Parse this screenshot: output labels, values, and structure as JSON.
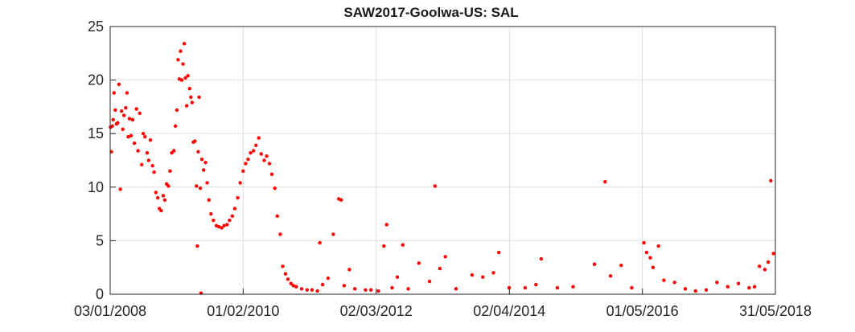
{
  "chart_data": {
    "type": "scatter",
    "title": "SAW2017-Goolwa-US: SAL",
    "xlabel": "",
    "ylabel": "",
    "x_ticks": [
      "03/01/2008",
      "01/02/2010",
      "02/03/2012",
      "02/04/2014",
      "01/05/2016",
      "31/05/2018"
    ],
    "y_ticks": [
      "0",
      "5",
      "10",
      "15",
      "20",
      "25"
    ],
    "xlim": [
      "03/01/2008",
      "31/05/2018"
    ],
    "ylim": [
      0,
      25
    ],
    "grid": true,
    "marker_color": "#ff0000",
    "series": [
      {
        "points": [
          [
            "2008-01-05",
            15.6
          ],
          [
            "2008-01-10",
            13.3
          ],
          [
            "2008-01-15",
            15.7
          ],
          [
            "2008-01-20",
            16.3
          ],
          [
            "2008-01-25",
            18.8
          ],
          [
            "2008-02-01",
            17.2
          ],
          [
            "2008-02-08",
            15.9
          ],
          [
            "2008-02-15",
            16.0
          ],
          [
            "2008-02-22",
            19.6
          ],
          [
            "2008-03-01",
            9.8
          ],
          [
            "2008-03-08",
            17.1
          ],
          [
            "2008-03-15",
            15.4
          ],
          [
            "2008-03-22",
            16.7
          ],
          [
            "2008-04-01",
            17.4
          ],
          [
            "2008-04-08",
            18.8
          ],
          [
            "2008-04-15",
            14.7
          ],
          [
            "2008-04-22",
            16.4
          ],
          [
            "2008-05-01",
            14.8
          ],
          [
            "2008-05-10",
            16.3
          ],
          [
            "2008-05-20",
            14.1
          ],
          [
            "2008-06-01",
            17.3
          ],
          [
            "2008-06-10",
            13.4
          ],
          [
            "2008-06-20",
            16.9
          ],
          [
            "2008-07-01",
            12.1
          ],
          [
            "2008-07-10",
            15.0
          ],
          [
            "2008-07-20",
            14.7
          ],
          [
            "2008-08-01",
            13.2
          ],
          [
            "2008-08-10",
            12.5
          ],
          [
            "2008-08-20",
            14.4
          ],
          [
            "2008-09-01",
            12.0
          ],
          [
            "2008-09-10",
            11.4
          ],
          [
            "2008-09-20",
            9.5
          ],
          [
            "2008-10-01",
            9.0
          ],
          [
            "2008-10-10",
            8.0
          ],
          [
            "2008-10-20",
            7.8
          ],
          [
            "2008-11-01",
            9.2
          ],
          [
            "2008-11-10",
            8.8
          ],
          [
            "2008-11-20",
            10.3
          ],
          [
            "2008-12-01",
            10.1
          ],
          [
            "2008-12-10",
            11.5
          ],
          [
            "2008-12-20",
            13.2
          ],
          [
            "2009-01-01",
            13.4
          ],
          [
            "2009-01-10",
            15.7
          ],
          [
            "2009-01-18",
            17.2
          ],
          [
            "2009-01-25",
            21.9
          ],
          [
            "2009-02-01",
            20.1
          ],
          [
            "2009-02-08",
            22.7
          ],
          [
            "2009-02-15",
            20.0
          ],
          [
            "2009-02-22",
            21.5
          ],
          [
            "2009-03-01",
            23.4
          ],
          [
            "2009-03-08",
            20.2
          ],
          [
            "2009-03-15",
            17.6
          ],
          [
            "2009-03-22",
            20.4
          ],
          [
            "2009-04-01",
            19.2
          ],
          [
            "2009-04-08",
            18.4
          ],
          [
            "2009-04-15",
            17.9
          ],
          [
            "2009-04-22",
            14.2
          ],
          [
            "2009-05-01",
            14.3
          ],
          [
            "2009-05-10",
            10.1
          ],
          [
            "2009-05-15",
            4.5
          ],
          [
            "2009-05-20",
            13.3
          ],
          [
            "2009-05-25",
            18.4
          ],
          [
            "2009-06-01",
            9.9
          ],
          [
            "2009-06-05",
            0.1
          ],
          [
            "2009-06-10",
            12.6
          ],
          [
            "2009-06-20",
            11.6
          ],
          [
            "2009-07-01",
            12.3
          ],
          [
            "2009-07-10",
            10.4
          ],
          [
            "2009-07-20",
            8.8
          ],
          [
            "2009-08-01",
            7.5
          ],
          [
            "2009-08-15",
            6.9
          ],
          [
            "2009-09-01",
            6.4
          ],
          [
            "2009-09-15",
            6.3
          ],
          [
            "2009-10-01",
            6.2
          ],
          [
            "2009-10-15",
            6.4
          ],
          [
            "2009-11-01",
            6.5
          ],
          [
            "2009-11-15",
            6.9
          ],
          [
            "2009-12-01",
            7.3
          ],
          [
            "2009-12-15",
            8.0
          ],
          [
            "2010-01-01",
            9.0
          ],
          [
            "2010-01-15",
            10.4
          ],
          [
            "2010-02-01",
            11.5
          ],
          [
            "2010-02-15",
            12.2
          ],
          [
            "2010-03-01",
            12.6
          ],
          [
            "2010-03-15",
            13.2
          ],
          [
            "2010-04-01",
            13.4
          ],
          [
            "2010-04-15",
            13.9
          ],
          [
            "2010-05-01",
            14.6
          ],
          [
            "2010-05-15",
            13.1
          ],
          [
            "2010-06-01",
            12.5
          ],
          [
            "2010-06-15",
            12.9
          ],
          [
            "2010-07-01",
            12.2
          ],
          [
            "2010-07-15",
            11.2
          ],
          [
            "2010-08-01",
            9.9
          ],
          [
            "2010-08-15",
            7.3
          ],
          [
            "2010-09-01",
            5.6
          ],
          [
            "2010-09-15",
            2.6
          ],
          [
            "2010-10-01",
            1.9
          ],
          [
            "2010-10-15",
            1.4
          ],
          [
            "2010-11-01",
            1.0
          ],
          [
            "2010-11-15",
            0.8
          ],
          [
            "2010-12-01",
            0.7
          ],
          [
            "2011-01-01",
            0.5
          ],
          [
            "2011-02-01",
            0.4
          ],
          [
            "2011-03-01",
            0.4
          ],
          [
            "2011-04-01",
            0.3
          ],
          [
            "2011-04-15",
            4.8
          ],
          [
            "2011-05-01",
            0.9
          ],
          [
            "2011-06-01",
            1.5
          ],
          [
            "2011-07-01",
            5.6
          ],
          [
            "2011-08-01",
            8.9
          ],
          [
            "2011-08-15",
            8.8
          ],
          [
            "2011-09-01",
            0.8
          ],
          [
            "2011-10-01",
            2.3
          ],
          [
            "2011-11-01",
            0.5
          ],
          [
            "2012-01-01",
            0.4
          ],
          [
            "2012-02-01",
            0.4
          ],
          [
            "2012-03-15",
            0.3
          ],
          [
            "2012-04-15",
            4.5
          ],
          [
            "2012-05-01",
            6.5
          ],
          [
            "2012-06-01",
            0.6
          ],
          [
            "2012-07-01",
            1.6
          ],
          [
            "2012-08-01",
            4.6
          ],
          [
            "2012-09-01",
            0.5
          ],
          [
            "2012-11-01",
            2.9
          ],
          [
            "2013-01-01",
            1.2
          ],
          [
            "2013-02-01",
            10.1
          ],
          [
            "2013-03-01",
            2.4
          ],
          [
            "2013-04-01",
            3.5
          ],
          [
            "2013-06-01",
            0.5
          ],
          [
            "2013-09-01",
            1.8
          ],
          [
            "2013-11-01",
            1.6
          ],
          [
            "2014-01-01",
            2.0
          ],
          [
            "2014-02-01",
            3.9
          ],
          [
            "2014-04-01",
            0.6
          ],
          [
            "2014-07-01",
            0.6
          ],
          [
            "2014-09-01",
            0.9
          ],
          [
            "2014-10-01",
            3.3
          ],
          [
            "2015-01-01",
            0.6
          ],
          [
            "2015-04-01",
            0.7
          ],
          [
            "2015-08-01",
            2.8
          ],
          [
            "2015-10-01",
            10.5
          ],
          [
            "2015-11-01",
            1.7
          ],
          [
            "2016-01-01",
            2.7
          ],
          [
            "2016-03-01",
            0.6
          ],
          [
            "2016-05-10",
            4.8
          ],
          [
            "2016-05-25",
            3.9
          ],
          [
            "2016-06-15",
            3.4
          ],
          [
            "2016-07-01",
            2.5
          ],
          [
            "2016-08-01",
            4.5
          ],
          [
            "2016-09-01",
            1.3
          ],
          [
            "2016-11-01",
            1.1
          ],
          [
            "2017-01-01",
            0.5
          ],
          [
            "2017-03-01",
            0.3
          ],
          [
            "2017-05-01",
            0.4
          ],
          [
            "2017-07-01",
            1.1
          ],
          [
            "2017-09-01",
            0.7
          ],
          [
            "2017-11-01",
            1.0
          ],
          [
            "2018-01-01",
            0.6
          ],
          [
            "2018-02-01",
            0.7
          ],
          [
            "2018-03-01",
            2.6
          ],
          [
            "2018-04-01",
            2.3
          ],
          [
            "2018-04-20",
            3.0
          ],
          [
            "2018-05-05",
            10.6
          ],
          [
            "2018-05-20",
            3.8
          ]
        ]
      }
    ]
  }
}
